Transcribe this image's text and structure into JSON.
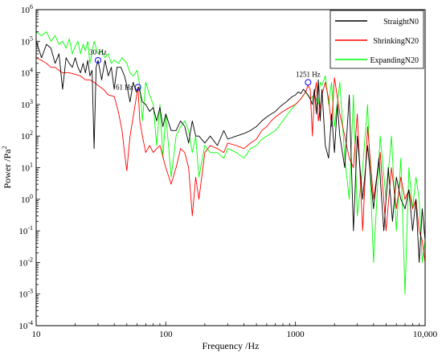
{
  "chart_data": {
    "type": "line",
    "xlabel": "Frequency /Hz",
    "ylabel": "Power /Pa",
    "ylabel_exp": "2",
    "x_scale": "log",
    "y_scale": "log",
    "xlim": [
      10,
      10000
    ],
    "ylim": [
      0.0001,
      1000000
    ],
    "x_ticks": [
      {
        "value": 10,
        "label": "10"
      },
      {
        "value": 100,
        "label": "100"
      },
      {
        "value": 1000,
        "label": "1000"
      },
      {
        "value": 10000,
        "label": "10,000"
      }
    ],
    "y_ticks": [
      {
        "value": 1000000,
        "base": "10",
        "exp": "6"
      },
      {
        "value": 100000,
        "base": "10",
        "exp": "5"
      },
      {
        "value": 10000,
        "base": "10",
        "exp": "4"
      },
      {
        "value": 1000,
        "base": "10",
        "exp": "3"
      },
      {
        "value": 100,
        "base": "10",
        "exp": "2"
      },
      {
        "value": 10,
        "base": "10",
        "exp": "1"
      },
      {
        "value": 1,
        "base": "10",
        "exp": "0"
      },
      {
        "value": 0.1,
        "base": "10",
        "exp": "-1"
      },
      {
        "value": 0.01,
        "base": "10",
        "exp": "-2"
      },
      {
        "value": 0.001,
        "base": "10",
        "exp": "-3"
      },
      {
        "value": 0.0001,
        "base": "10",
        "exp": "-4"
      }
    ],
    "grid": false,
    "legend_position": "top-right",
    "series": [
      {
        "name": "StraightN0",
        "color": "#000000",
        "x": [
          10,
          11,
          12,
          13,
          14,
          15,
          16,
          17,
          18,
          19,
          20,
          21,
          22,
          23,
          24,
          25,
          26,
          27,
          28,
          29,
          30,
          32,
          34,
          36,
          38,
          40,
          42,
          45,
          48,
          50,
          53,
          56,
          59,
          62,
          66,
          70,
          75,
          80,
          85,
          90,
          95,
          100,
          110,
          120,
          130,
          140,
          150,
          160,
          170,
          180,
          200,
          220,
          250,
          280,
          300,
          350,
          400,
          450,
          500,
          550,
          600,
          650,
          700,
          750,
          800,
          850,
          900,
          950,
          1000,
          1050,
          1100,
          1150,
          1200,
          1250,
          1300,
          1350,
          1400,
          1450,
          1500,
          1550,
          1600,
          1700,
          1800,
          1900,
          2000,
          2100,
          2200,
          2400,
          2600,
          2800,
          3000,
          3300,
          3600,
          4000,
          4400,
          4800,
          5200,
          5600,
          6000,
          6500,
          7000,
          7500,
          8000,
          8500,
          9000,
          9500,
          10000
        ],
        "y": [
          100000,
          30000,
          80000,
          60000,
          20000,
          40000,
          3000,
          30000,
          20000,
          15000,
          30000,
          15000,
          10000,
          20000,
          10000,
          25000,
          8000,
          12000,
          40,
          15000,
          25000,
          6000,
          25000,
          8000,
          15000,
          3000,
          15000,
          15000,
          8000,
          4000,
          1200,
          5000,
          2500,
          3500,
          1200,
          1000,
          600,
          800,
          300,
          800,
          200,
          500,
          150,
          150,
          300,
          200,
          60,
          300,
          100,
          100,
          60,
          100,
          50,
          150,
          80,
          100,
          120,
          150,
          200,
          300,
          400,
          500,
          600,
          800,
          1000,
          1200,
          1500,
          1800,
          2000,
          2500,
          2200,
          3000,
          2500,
          2000,
          1500,
          1000,
          3000,
          500,
          6000,
          300,
          3000,
          50,
          20,
          500,
          30,
          1000,
          100,
          10,
          2000,
          0.1,
          100,
          1,
          50,
          0.5,
          20,
          0.1,
          10,
          0.2,
          5,
          1,
          0.5,
          2,
          0.1,
          1,
          0.01,
          0.5,
          0.05
        ]
      },
      {
        "name": "ShrinkingN20",
        "color": "#ff0000",
        "x": [
          10,
          11,
          12,
          13,
          14,
          15,
          16,
          18,
          20,
          22,
          24,
          26,
          28,
          30,
          33,
          36,
          40,
          43,
          46,
          48,
          50,
          53,
          55,
          58,
          61,
          63,
          66,
          70,
          75,
          80,
          85,
          90,
          100,
          110,
          120,
          130,
          140,
          150,
          160,
          170,
          180,
          200,
          220,
          250,
          280,
          300,
          350,
          400,
          450,
          500,
          550,
          600,
          650,
          700,
          800,
          900,
          1000,
          1100,
          1200,
          1251,
          1300,
          1350,
          1400,
          1450,
          1500,
          1600,
          1700,
          1800,
          1900,
          2000,
          2200,
          2400,
          2600,
          2800,
          3000,
          3300,
          3600,
          4000,
          4500,
          5000,
          5500,
          6000,
          6500,
          7000,
          7500,
          8000,
          8500,
          9000,
          9500,
          10000
        ],
        "y": [
          30000,
          25000,
          20000,
          15000,
          15000,
          12000,
          10000,
          10000,
          9000,
          8000,
          6000,
          6000,
          5000,
          4000,
          3000,
          2000,
          1800,
          600,
          150,
          30,
          8,
          100,
          250,
          1000,
          3500,
          300,
          100,
          30,
          50,
          30,
          40,
          50,
          10,
          3,
          10,
          40,
          30,
          10,
          0.3,
          5,
          1,
          30,
          50,
          40,
          30,
          60,
          50,
          40,
          60,
          80,
          150,
          200,
          300,
          400,
          600,
          800,
          1000,
          1500,
          2500,
          4000,
          3000,
          100,
          2000,
          5000,
          300,
          2000,
          5000,
          1500,
          200,
          7000,
          500,
          100,
          20,
          10,
          500,
          0.1,
          200,
          1,
          30,
          0.1,
          10,
          0.5,
          5,
          1,
          2,
          0.5,
          1,
          0.1,
          0.05,
          0.01
        ]
      },
      {
        "name": "ExpandingN20",
        "color": "#00ff00",
        "x": [
          10,
          11,
          12,
          13,
          14,
          15,
          16,
          17,
          18,
          19,
          20,
          21,
          22,
          23,
          24,
          25,
          26,
          28,
          30,
          32,
          34,
          36,
          38,
          40,
          43,
          46,
          50,
          53,
          56,
          60,
          63,
          66,
          70,
          75,
          80,
          85,
          90,
          95,
          100,
          110,
          120,
          130,
          140,
          150,
          160,
          170,
          180,
          200,
          220,
          250,
          280,
          300,
          350,
          400,
          450,
          500,
          550,
          600,
          700,
          800,
          900,
          1000,
          1100,
          1200,
          1300,
          1400,
          1500,
          1550,
          1600,
          1700,
          1800,
          1900,
          2000,
          2200,
          2400,
          2600,
          2800,
          3000,
          3300,
          3600,
          4000,
          4500,
          5000,
          5500,
          6000,
          6500,
          7000,
          7500,
          8000,
          8500,
          9000,
          9500,
          10000
        ],
        "y": [
          200000,
          150000,
          200000,
          100000,
          150000,
          80000,
          100000,
          60000,
          120000,
          40000,
          70000,
          100000,
          40000,
          80000,
          50000,
          100000,
          20000,
          100000,
          40000,
          50000,
          30000,
          40000,
          20000,
          25000,
          20000,
          30000,
          20000,
          10000,
          8000,
          12000,
          4000,
          300,
          5000,
          2000,
          1000,
          50,
          1000,
          20,
          500,
          5,
          100,
          200,
          300,
          150,
          30,
          100,
          5,
          50,
          30,
          30,
          20,
          40,
          30,
          20,
          40,
          50,
          80,
          100,
          150,
          300,
          600,
          1000,
          1500,
          2500,
          1500,
          2000,
          1000,
          5000,
          4000,
          8000,
          1000,
          5000,
          200,
          5000,
          20,
          1,
          2000,
          0.3,
          10,
          1000,
          0.01,
          100,
          1,
          100,
          0.1,
          20,
          0.001,
          10,
          0.5,
          5,
          1,
          0.01,
          0.05
        ]
      }
    ],
    "annotations": [
      {
        "text": "30 Hz",
        "x": 30,
        "y": 25000,
        "label_side": "above"
      },
      {
        "text": "61 Hz",
        "x": 61,
        "y": 3500,
        "label_side": "left"
      },
      {
        "text": "1251 Hz",
        "x": 1251,
        "y": 5000,
        "label_side": "above"
      }
    ]
  }
}
